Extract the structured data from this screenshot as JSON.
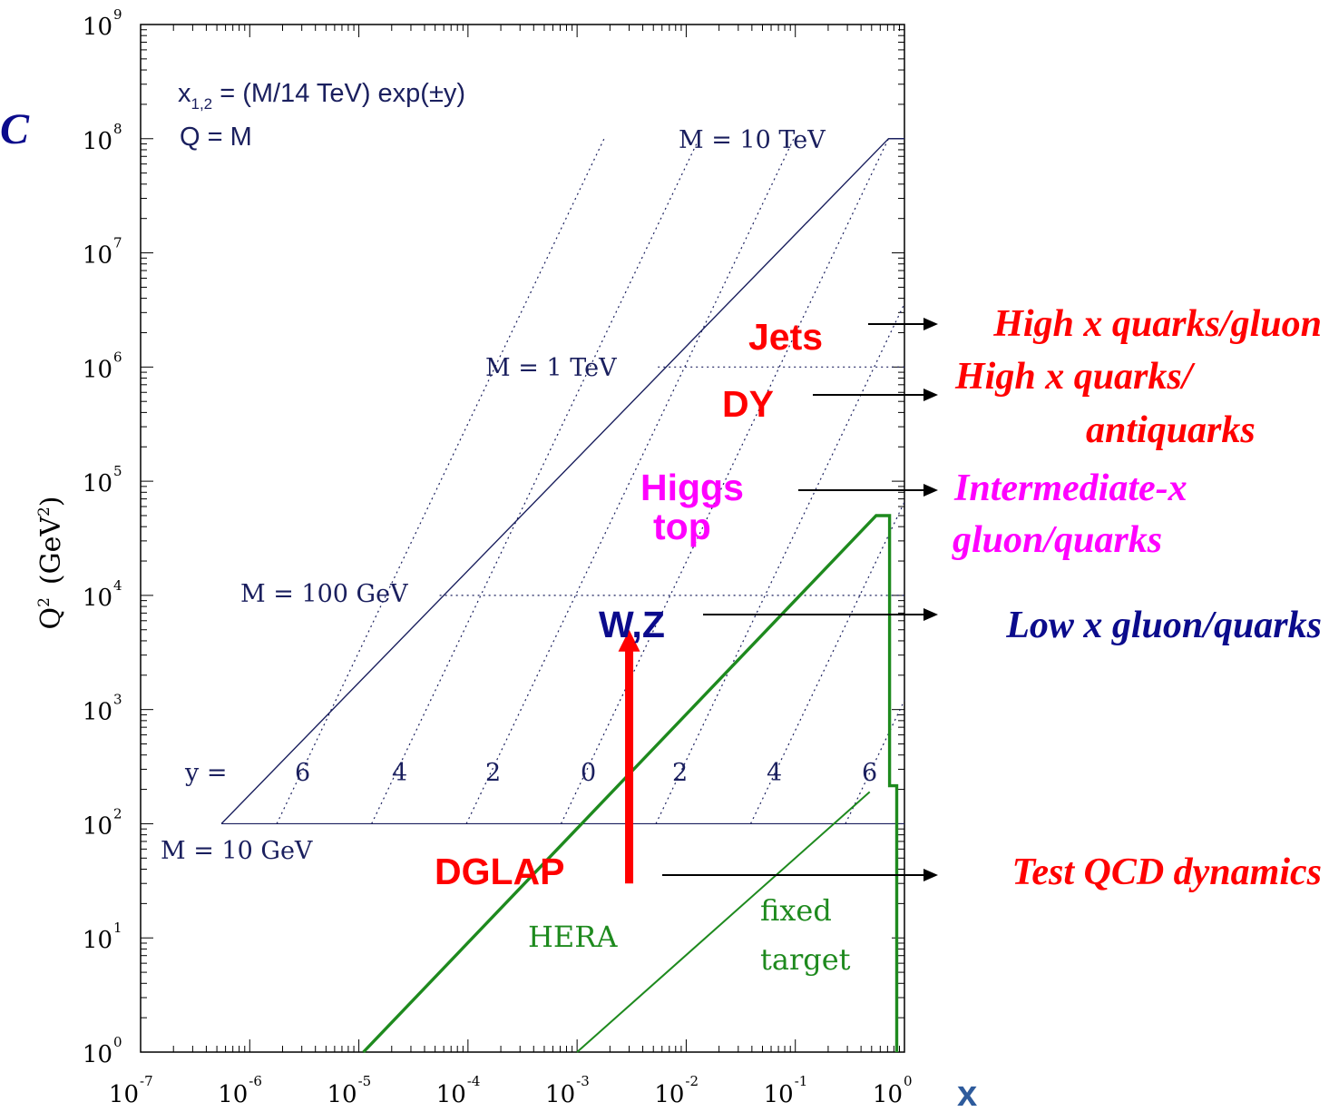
{
  "chart_data": {
    "type": "line",
    "xscale": "log",
    "yscale": "log",
    "xlim": [
      1e-07,
      1
    ],
    "ylim": [
      1,
      1000000000.0
    ],
    "x_ticks": [
      {
        "base": "10",
        "exp": "-7",
        "value": 1e-07
      },
      {
        "base": "10",
        "exp": "-6",
        "value": 1e-06
      },
      {
        "base": "10",
        "exp": "-5",
        "value": 1e-05
      },
      {
        "base": "10",
        "exp": "-4",
        "value": 0.0001
      },
      {
        "base": "10",
        "exp": "-3",
        "value": 0.001
      },
      {
        "base": "10",
        "exp": "-2",
        "value": 0.01
      },
      {
        "base": "10",
        "exp": "-1",
        "value": 0.1
      },
      {
        "base": "10",
        "exp": "0",
        "value": 1
      }
    ],
    "y_ticks": [
      {
        "base": "10",
        "exp": "0",
        "value": 1
      },
      {
        "base": "10",
        "exp": "1",
        "value": 10
      },
      {
        "base": "10",
        "exp": "2",
        "value": 100
      },
      {
        "base": "10",
        "exp": "3",
        "value": 1000
      },
      {
        "base": "10",
        "exp": "4",
        "value": 10000
      },
      {
        "base": "10",
        "exp": "5",
        "value": 100000
      },
      {
        "base": "10",
        "exp": "6",
        "value": 1000000
      },
      {
        "base": "10",
        "exp": "7",
        "value": 10000000
      },
      {
        "base": "10",
        "exp": "8",
        "value": 100000000
      },
      {
        "base": "10",
        "exp": "9",
        "value": 1000000000
      }
    ],
    "xlabel": "x",
    "ylabel": {
      "main": "Q",
      "sup": "2",
      "unit": "(GeV",
      "unit_sup": "2",
      "unit_close": ")"
    },
    "formula": {
      "line1_a": "x",
      "line1_sub": "1,2",
      "line1_b": " = (M/14 TeV) exp(±y)",
      "line2": "Q = M"
    },
    "lhc_boundary": [
      [
        5.5e-07,
        100
      ],
      [
        0.714,
        100000000.0
      ],
      [
        1.0,
        100000000.0
      ]
    ],
    "mass_lines": [
      {
        "label": "M = 10 GeV",
        "Q2": 100,
        "x_from": 5.5e-07,
        "x_to": 1.0
      },
      {
        "label": "M = 100 GeV",
        "Q2": 10000,
        "x_from": 5.5e-05,
        "x_to": 1.0
      },
      {
        "label": "M = 1 TeV",
        "Q2": 1000000,
        "x_from": 0.0055,
        "x_to": 1.0
      },
      {
        "label": "M = 10 TeV",
        "Q2": 100000000,
        "x_from": 0.714,
        "x_to": 1.0
      }
    ],
    "rapidity_label": "y =",
    "rapidity_lines": [
      {
        "label": "6",
        "y": 6,
        "x_at_Q2_100": 1.77e-06
      },
      {
        "label": "4",
        "y": 4,
        "x_at_Q2_100": 1.31e-05
      },
      {
        "label": "2",
        "y": 2,
        "x_at_Q2_100": 9.67e-05
      },
      {
        "label": "0",
        "y": 0,
        "x_at_Q2_100": 0.000714
      },
      {
        "label": "2",
        "y": -2,
        "x_at_Q2_100": 0.00528
      },
      {
        "label": "4",
        "y": -4,
        "x_at_Q2_100": 0.039
      },
      {
        "label": "6",
        "y": -6,
        "x_at_Q2_100": 0.288
      }
    ],
    "hera": {
      "label": "HERA",
      "boundary": [
        [
          1.1e-05,
          1
        ],
        [
          0.55,
          50000
        ],
        [
          0.73,
          50000
        ],
        [
          0.73,
          215
        ],
        [
          0.85,
          215
        ],
        [
          0.85,
          1
        ]
      ]
    },
    "fixed_target": {
      "label_line1": "fixed",
      "label_line2": "target",
      "line": [
        [
          0.001,
          1
        ],
        [
          0.48,
          190
        ]
      ]
    },
    "dglap_arrow": {
      "label": "DGLAP",
      "x": 0.003,
      "Q2_from": 30,
      "Q2_to": 5000,
      "color": "#ff0000"
    },
    "processes": [
      {
        "label": "Jets",
        "color": "#ff0000",
        "desc": [
          "High x quarks/gluon"
        ],
        "desc_color": "#ff0000"
      },
      {
        "label": "DY",
        "color": "#ff0000",
        "desc": [
          "High x quarks/",
          "antiquarks"
        ],
        "desc_color": "#ff0000"
      },
      {
        "label": "Higgs",
        "label2": "top",
        "color": "#ff00ff",
        "desc": [
          "Intermediate-x",
          "gluon/quarks"
        ],
        "desc_color": "#ff00ff"
      },
      {
        "label": "W,Z",
        "color": "#0b0b8c",
        "desc": [
          "Low x gluon/quarks"
        ],
        "desc_color": "#0b0b8c"
      },
      {
        "label": "DGLAP",
        "color": "#ff0000",
        "desc": [
          "Test QCD dynamics"
        ],
        "desc_color": "#ff0000"
      }
    ],
    "partial_title": "C",
    "colors": {
      "navy": "#1a1f5e",
      "green": "#1e8a1e",
      "red": "#ff0000",
      "magenta": "#ff00ff",
      "blue": "#0b0b8c",
      "x_label": "#2e5b9c"
    }
  }
}
